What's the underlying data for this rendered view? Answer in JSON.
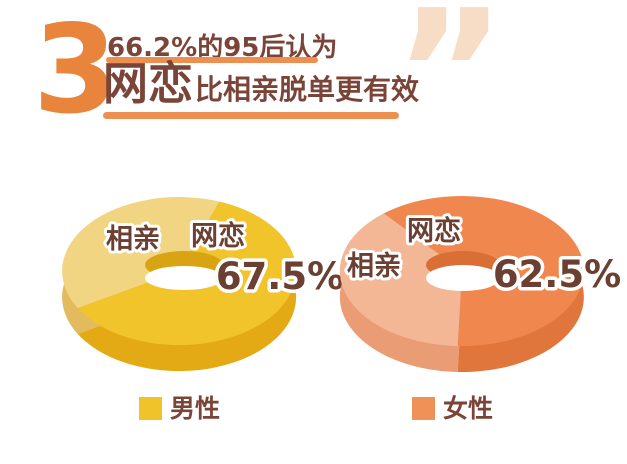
{
  "header": {
    "index_number": "3",
    "line1": "66.2%的95后认为",
    "line2_emphasis": "网恋",
    "line2_rest": "比相亲脱单更有效",
    "quote_mark": "”"
  },
  "chart_data": [
    {
      "type": "donut",
      "style": "3d",
      "group": "男性",
      "value_label": "67.5%",
      "inner_wall_color": "#D8A413",
      "slices": [
        {
          "label": "网恋",
          "value_pct": 67.5,
          "color": "#F1C42C",
          "wall_color": "#E3AA15",
          "arc_start": 210,
          "arc_end": 430
        },
        {
          "label": "相亲",
          "value_pct": 32.5,
          "color": "#F2D583",
          "wall_color": "#E2BB5E",
          "arc_start": 70,
          "arc_end": 210
        }
      ]
    },
    {
      "type": "donut",
      "style": "3d",
      "group": "女性",
      "value_label": "62.5%",
      "inner_wall_color": "#D96F35",
      "slices": [
        {
          "label": "网恋",
          "value_pct": 62.5,
          "color": "#F0874F",
          "wall_color": "#E1763C",
          "arc_start": 268,
          "arc_end": 490
        },
        {
          "label": "相亲",
          "value_pct": 37.5,
          "color": "#F3B795",
          "wall_color": "#EA9C74",
          "arc_start": 130,
          "arc_end": 268
        }
      ]
    }
  ],
  "legend": {
    "items": [
      {
        "label": "男性",
        "color": "#F0C32B"
      },
      {
        "label": "女性",
        "color": "#F09257"
      }
    ]
  },
  "colors": {
    "accent_orange": "#E8843C",
    "underline_orange": "#EE8F52",
    "text_brown": "#7A4538",
    "chart_text_brown": "#6B4033",
    "quote_peach": "#F8DDC6",
    "background": "#FFFFFF"
  }
}
